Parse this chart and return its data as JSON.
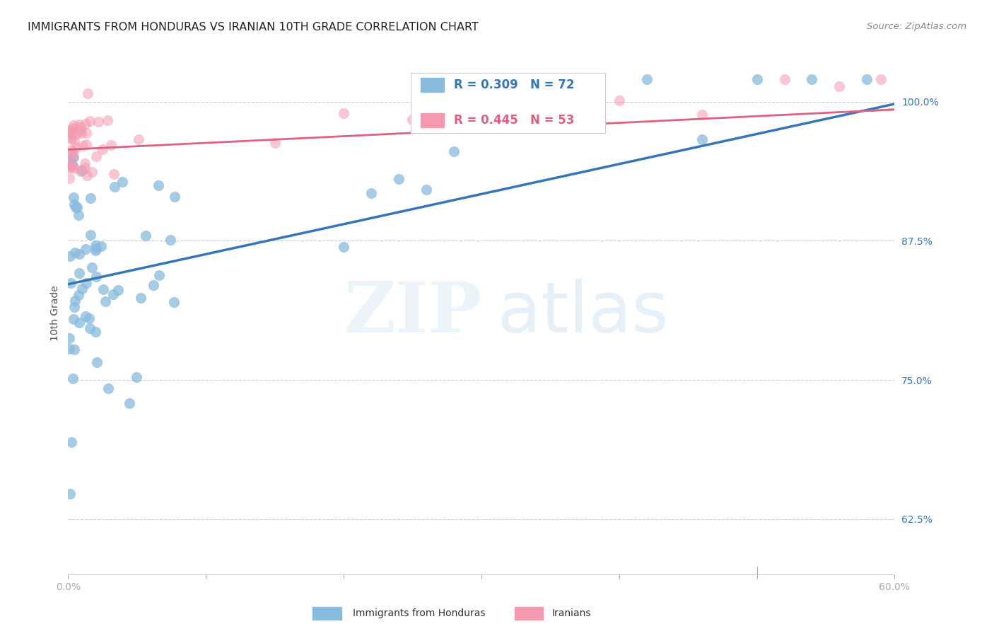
{
  "title": "IMMIGRANTS FROM HONDURAS VS IRANIAN 10TH GRADE CORRELATION CHART",
  "source": "Source: ZipAtlas.com",
  "ylabel": "10th Grade",
  "ytick_labels": [
    "100.0%",
    "87.5%",
    "75.0%",
    "62.5%"
  ],
  "ytick_values": [
    1.0,
    0.875,
    0.75,
    0.625
  ],
  "xmin": 0.0,
  "xmax": 0.6,
  "ymin": 0.575,
  "ymax": 1.045,
  "legend_blue_r": "R = 0.309",
  "legend_blue_n": "N = 72",
  "legend_pink_r": "R = 0.445",
  "legend_pink_n": "N = 53",
  "legend_blue_label": "Immigrants from Honduras",
  "legend_pink_label": "Iranians",
  "blue_color": "#88bbdd",
  "pink_color": "#f49ab0",
  "blue_line_color": "#3377bb",
  "pink_line_color": "#e06080",
  "blue_scatter_alpha": 0.75,
  "pink_scatter_alpha": 0.55,
  "blue_trendline_x": [
    0.0,
    0.6
  ],
  "blue_trendline_y": [
    0.836,
    0.998
  ],
  "pink_trendline_x": [
    0.0,
    0.6
  ],
  "pink_trendline_y": [
    0.957,
    0.993
  ],
  "marker_size": 120,
  "grid_color": "#cccccc",
  "bg_color": "#ffffff",
  "title_fontsize": 11.5,
  "source_fontsize": 9.5
}
